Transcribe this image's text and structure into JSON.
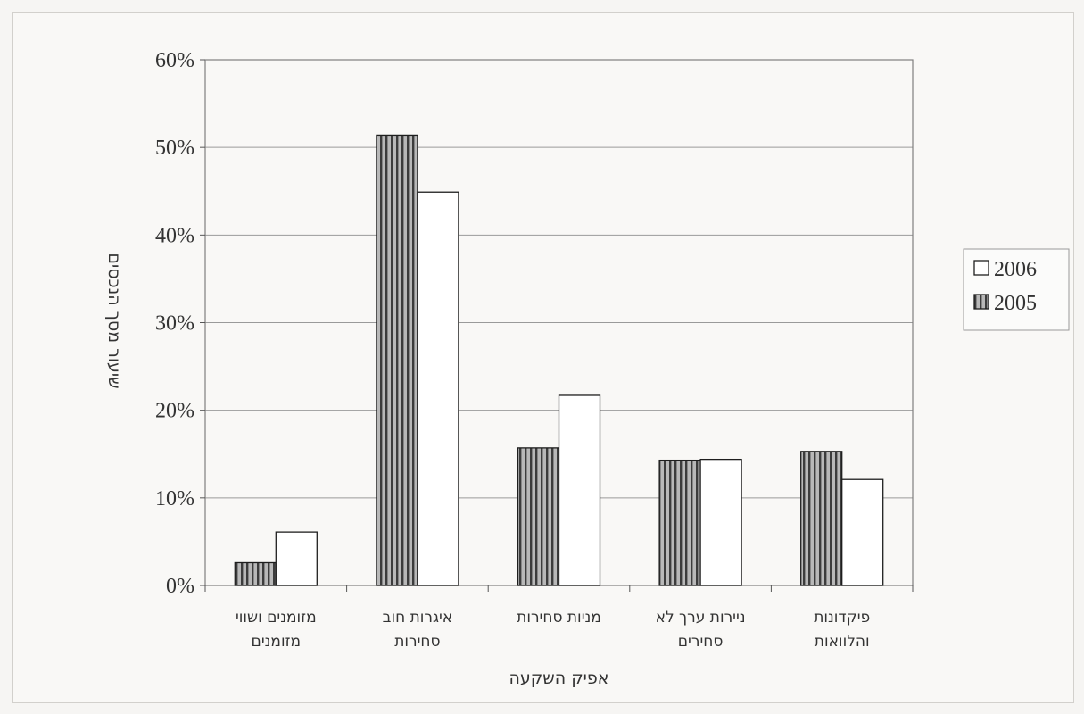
{
  "chart_data": {
    "type": "bar",
    "categories": [
      [
        "מזומנים ושווי",
        "מזומנים"
      ],
      [
        "איגרות חוב",
        "סחירות"
      ],
      [
        "מניות סחירות"
      ],
      [
        "ניירות ערך לא",
        "סחירים"
      ],
      [
        "פיקדונות",
        "והלוואות"
      ]
    ],
    "series": [
      {
        "name": "2005",
        "values": [
          2.6,
          51.4,
          15.7,
          14.3,
          15.3
        ],
        "color": "#8a8a8a",
        "pattern": "vertical-stripes"
      },
      {
        "name": "2006",
        "values": [
          6.1,
          44.9,
          21.7,
          14.4,
          12.1
        ],
        "color": "#ffffff",
        "pattern": "none"
      }
    ],
    "xlabel": "אפיק השקעה",
    "ylabel": "שיעור מסך הנכסים",
    "ylim": [
      0,
      60
    ],
    "yticks": [
      "0%",
      "10%",
      "20%",
      "30%",
      "40%",
      "50%",
      "60%"
    ],
    "legend": {
      "position": "right",
      "entries": [
        {
          "label": "2006",
          "series": "2006"
        },
        {
          "label": "2005",
          "series": "2005"
        }
      ]
    },
    "grid": true
  }
}
